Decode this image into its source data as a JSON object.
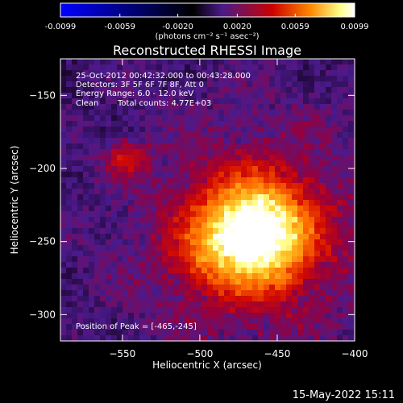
{
  "colorbar": {
    "tick_labels": [
      "-0.0099",
      "-0.0059",
      "-0.0020",
      "0.0020",
      "0.0059",
      "0.0099"
    ],
    "tick_values": [
      -0.0099,
      -0.0059,
      -0.002,
      0.002,
      0.0059,
      0.0099
    ],
    "range": [
      -0.0099,
      0.0099
    ],
    "unit_label": "(photons cm⁻² s⁻¹ asec⁻²)",
    "colors": [
      "#0000ff",
      "#000000",
      "#4a1a8a",
      "#cc0000",
      "#ff8800",
      "#ffff88",
      "#ffffff"
    ]
  },
  "chart_data": {
    "type": "heatmap",
    "title": "Reconstructed RHESSI Image",
    "xlabel": "Heliocentric X (arcsec)",
    "ylabel": "Heliocentric Y (arcsec)",
    "xlim": [
      -590,
      -400
    ],
    "ylim": [
      -318,
      -125
    ],
    "x_ticks": [
      -550,
      -500,
      -450,
      -400
    ],
    "x_tick_labels": [
      "−550",
      "−500",
      "−450",
      "−400"
    ],
    "y_ticks": [
      -150,
      -200,
      -250,
      -300
    ],
    "y_tick_labels": [
      "−150",
      "−200",
      "−250",
      "−300"
    ],
    "peak": {
      "x": -465,
      "y": -245,
      "value": 0.0099
    },
    "sources": [
      {
        "x": -465,
        "y": -245,
        "sigma": 24,
        "value": 0.0095
      },
      {
        "x": -548,
        "y": -193,
        "sigma": 9,
        "value": 0.0028
      },
      {
        "x": -500,
        "y": -260,
        "sigma": 14,
        "value": 0.0012
      }
    ],
    "annotations": {
      "time_range": "25-Oct-2012 00:42:32.000 to 00:43:28.000",
      "detectors": "Detectors: 3F 5F 6F 7F 8F, Att 0",
      "energy_range": "Energy Range: 6.0 - 12.0 keV",
      "clean_label": "Clean",
      "total_counts": "Total counts: 4.77E+03",
      "position_of_peak": "Position of Peak = [-465,-245]"
    }
  },
  "footer": {
    "timestamp": "15-May-2022 15:11"
  }
}
